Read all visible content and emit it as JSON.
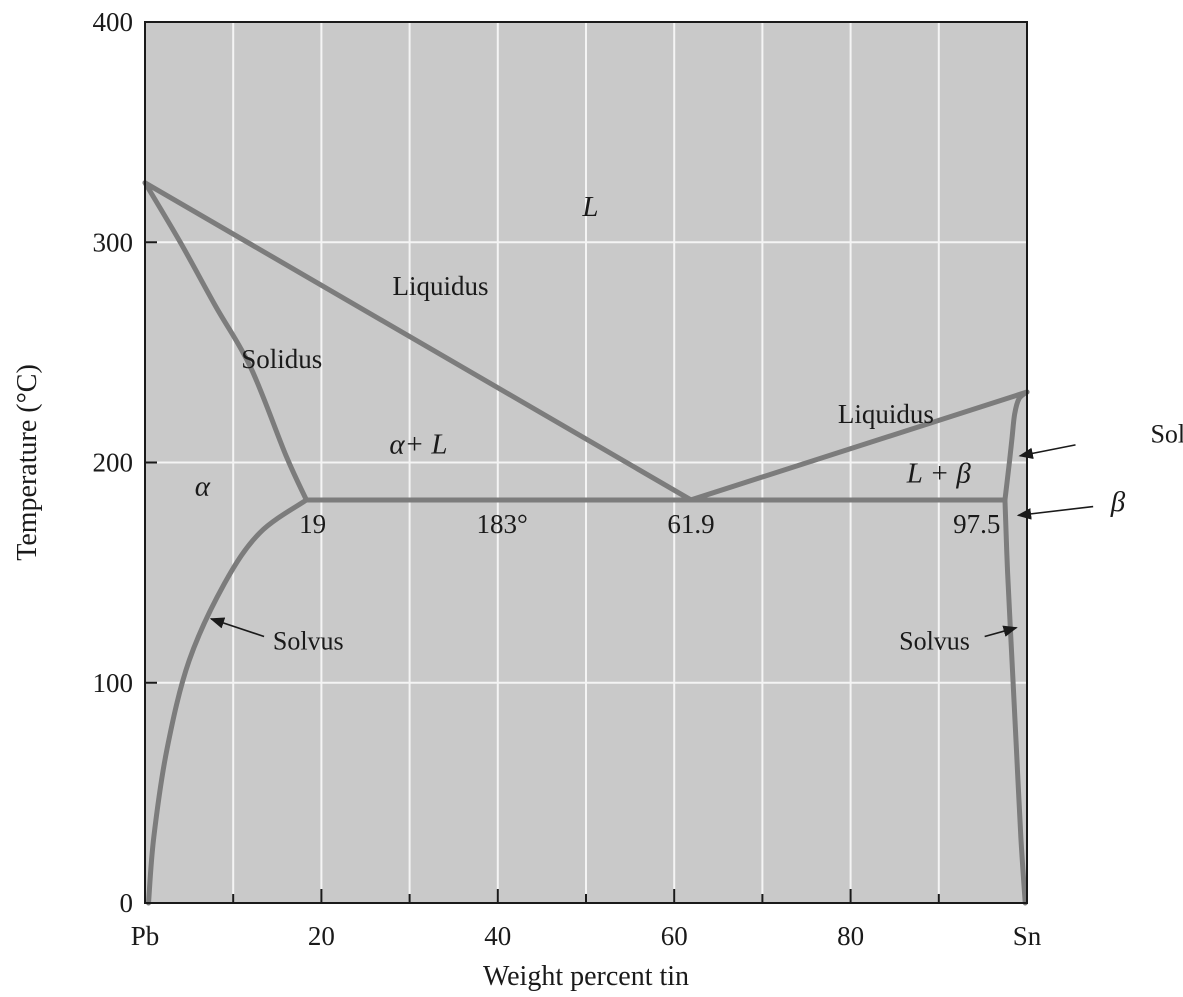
{
  "chart_data": {
    "type": "line",
    "title": "",
    "xlabel": "Weight percent tin",
    "ylabel": "Temperature (°C)",
    "xlim": [
      0,
      100
    ],
    "ylim": [
      0,
      400
    ],
    "grid": true,
    "x_ticks": [
      {
        "value": 0,
        "label": "Pb"
      },
      {
        "value": 20,
        "label": "20"
      },
      {
        "value": 40,
        "label": "40"
      },
      {
        "value": 60,
        "label": "60"
      },
      {
        "value": 80,
        "label": "80"
      },
      {
        "value": 100,
        "label": "Sn"
      }
    ],
    "x_minor_ticks": [
      10,
      30,
      50,
      70,
      90
    ],
    "y_ticks": [
      {
        "value": 0,
        "label": "0"
      },
      {
        "value": 100,
        "label": "100"
      },
      {
        "value": 200,
        "label": "200"
      },
      {
        "value": 300,
        "label": "300"
      },
      {
        "value": 400,
        "label": "400"
      }
    ],
    "series": [
      {
        "x": [
          0,
          61.9
        ],
        "y": [
          327,
          183
        ]
      },
      {
        "x": [
          61.9,
          100
        ],
        "y": [
          183,
          232
        ]
      },
      {
        "x": [
          0,
          4,
          8,
          12,
          16,
          18.3
        ],
        "y": [
          327,
          300,
          271,
          243,
          203,
          183
        ]
      },
      {
        "x": [
          97.5,
          98,
          98.3,
          98.6,
          99.1,
          100
        ],
        "y": [
          183,
          200,
          211,
          222,
          229,
          232
        ]
      },
      {
        "x": [
          18.3,
          13,
          9,
          5,
          2.5,
          1,
          0.4
        ],
        "y": [
          183,
          168,
          145,
          110,
          70,
          30,
          0
        ]
      },
      {
        "x": [
          97.5,
          97.8,
          98.3,
          98.8,
          99.3,
          99.8
        ],
        "y": [
          183,
          150,
          110,
          70,
          30,
          0
        ]
      },
      {
        "x": [
          18.3,
          97.5
        ],
        "y": [
          183,
          183
        ]
      }
    ],
    "region_labels": [
      {
        "text": "L",
        "x": 50.5,
        "y": 312,
        "italic": true
      },
      {
        "text": "Liquidus",
        "x": 33.5,
        "y": 276,
        "italic": false
      },
      {
        "text": "Solidus",
        "x": 15.5,
        "y": 243,
        "italic": false
      },
      {
        "text": "α+ L",
        "x": 31,
        "y": 204,
        "italic": true
      },
      {
        "text": "Liquidus",
        "x": 84,
        "y": 218,
        "italic": false
      },
      {
        "text": "L + β",
        "x": 90,
        "y": 191,
        "italic": true
      },
      {
        "text": "α",
        "x": 6.5,
        "y": 185,
        "italic": true
      },
      {
        "text": "19",
        "x": 19,
        "y": 168,
        "italic": false
      },
      {
        "text": "183°",
        "x": 40.5,
        "y": 168,
        "italic": false
      },
      {
        "text": "61.9",
        "x": 61.9,
        "y": 168,
        "italic": false
      },
      {
        "text": "97.5",
        "x": 94.3,
        "y": 168,
        "italic": false
      }
    ],
    "annotations": [
      {
        "text": "Solidus",
        "label_x": 114,
        "label_y": 209,
        "anchor": "start",
        "arrow_from": [
          105.5,
          208
        ],
        "arrow_to": [
          99.2,
          203
        ]
      },
      {
        "text": "β",
        "label_x": 109.5,
        "label_y": 178,
        "anchor": "start",
        "italic": true,
        "arrow_from": [
          107.5,
          180
        ],
        "arrow_to": [
          99,
          176
        ]
      },
      {
        "text": "Solvus",
        "label_x": 14.5,
        "label_y": 115,
        "anchor": "start",
        "arrow_from": [
          13.5,
          121
        ],
        "arrow_to": [
          7.5,
          129
        ]
      },
      {
        "text": "Solvus",
        "label_x": 85.5,
        "label_y": 115,
        "anchor": "start",
        "arrow_from": [
          95.2,
          121
        ],
        "arrow_to": [
          98.8,
          125
        ]
      }
    ]
  }
}
